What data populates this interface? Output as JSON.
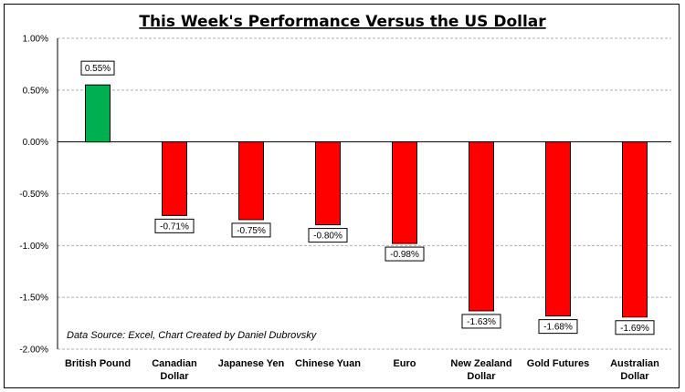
{
  "chart_data": {
    "type": "bar",
    "title": "This Week's Performance Versus the US Dollar",
    "categories": [
      [
        "British Pound"
      ],
      [
        "Canadian",
        "Dollar"
      ],
      [
        "Japanese Yen"
      ],
      [
        "Chinese Yuan"
      ],
      [
        "Euro"
      ],
      [
        "New Zealand",
        "Dollar"
      ],
      [
        "Gold Futures"
      ],
      [
        "Australian",
        "Dollar"
      ]
    ],
    "values": [
      0.55,
      -0.71,
      -0.75,
      -0.8,
      -0.98,
      -1.63,
      -1.68,
      -1.69
    ],
    "value_labels": [
      "0.55%",
      "-0.71%",
      "-0.75%",
      "-0.80%",
      "-0.98%",
      "-1.63%",
      "-1.68%",
      "-1.69%"
    ],
    "ylim": [
      -2.0,
      1.0
    ],
    "yticks": [
      1.0,
      0.5,
      0.0,
      -0.5,
      -1.0,
      -1.5,
      -2.0
    ],
    "ytick_labels": [
      "1.00%",
      "0.50%",
      "0.00%",
      "-0.50%",
      "-1.00%",
      "-1.50%",
      "-2.00%"
    ],
    "gridlines": true,
    "colors": {
      "positive": "#00b050",
      "negative": "#ff0000",
      "grid": "#b0b0b0"
    },
    "annotation": "Data Source: Excel, Chart Created by Daniel Dubrovsky"
  }
}
